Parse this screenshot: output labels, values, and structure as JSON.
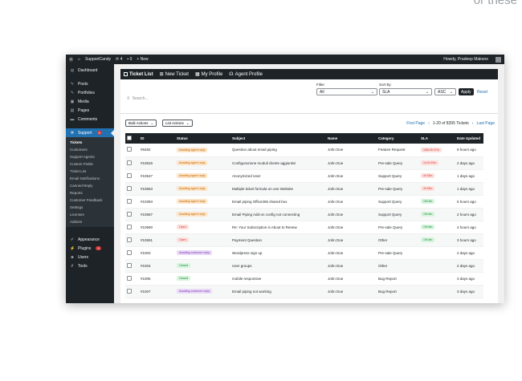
{
  "caption": "or these",
  "admin_bar": {
    "wp_logo": "wordpress-icon",
    "site": "SupportCandy",
    "updates": "4",
    "comments": "0",
    "new": "New",
    "howdy": "Howdy, Pradeep Makone"
  },
  "sidebar": {
    "top": [
      {
        "icon": "dashboard-icon",
        "label": "Dashboard"
      }
    ],
    "items": [
      {
        "icon": "pin-icon",
        "label": "Posts"
      },
      {
        "icon": "pin-icon",
        "label": "Portfolios"
      },
      {
        "icon": "media-icon",
        "label": "Media"
      },
      {
        "icon": "pages-icon",
        "label": "Pages"
      },
      {
        "icon": "comment-icon",
        "label": "Comments"
      }
    ],
    "support": {
      "label": "Support",
      "badge": "5"
    },
    "submenu": [
      "Tickets",
      "Customers",
      "Support Agents",
      "Custom Fields",
      "Ticket List",
      "Email Notifications",
      "Canned Reply",
      "Reports",
      "Customer Feedback",
      "Settings",
      "Licenses",
      "Addons"
    ],
    "bottom": [
      {
        "label": "Appearance",
        "badge": ""
      },
      {
        "label": "Plugins",
        "badge": "3"
      },
      {
        "label": "Users",
        "badge": ""
      },
      {
        "label": "Tools",
        "badge": ""
      }
    ]
  },
  "nav": {
    "tabs": [
      "Ticket List",
      "New Ticket",
      "My Profile",
      "Agent Profile"
    ]
  },
  "search": {
    "placeholder": "Search..."
  },
  "filter": {
    "label": "Filter",
    "value": "All"
  },
  "sort": {
    "label": "Sort By",
    "value": "SLA",
    "order": "ASC",
    "apply": "Apply",
    "reset": "Reset"
  },
  "actions": {
    "bulk": "Bulk Actions",
    "list": "List Actions"
  },
  "pager": {
    "first": "First Page",
    "info": "1-20 of 8395 Tickets",
    "last": "Last Page"
  },
  "table": {
    "columns": [
      "ID",
      "Status",
      "Subject",
      "Name",
      "Category",
      "SLA",
      "Date Updated"
    ],
    "rows": [
      {
        "id": "#6482",
        "status": "Awaiting agent reply",
        "status_type": "agent",
        "subject": "Question about email piping",
        "name": "John Doe",
        "category": "Feature Request",
        "sla": "183d 3h 57m",
        "sla_type": "red",
        "date": "9 hours ago"
      },
      {
        "id": "#10526",
        "status": "Awaiting agent reply",
        "status_type": "agent",
        "subject": "Configurazione moduli cliente aggiuntivi",
        "name": "John Doe",
        "category": "Pre-sale Query",
        "sla": "1d 4h 29m",
        "sla_type": "red",
        "date": "2 days ago"
      },
      {
        "id": "#10547",
        "status": "Awaiting agent reply",
        "status_type": "agent",
        "subject": "Anonymized User",
        "name": "John Doe",
        "category": "Support Query",
        "sla": "4h 53m",
        "sla_type": "red",
        "date": "1 days ago"
      },
      {
        "id": "#10553",
        "status": "Awaiting agent reply",
        "status_type": "agent",
        "subject": "Multiple ticket formula on one Website",
        "name": "John Doe",
        "category": "Pre-sale Query",
        "sla": "4h 53m",
        "sla_type": "red",
        "date": "1 days ago"
      },
      {
        "id": "#10393",
        "status": "Awaiting agent reply",
        "status_type": "agent",
        "subject": "Email piping Office365 shared box",
        "name": "John Doe",
        "category": "Support Query",
        "sla": "19h 8m",
        "sla_type": "green",
        "date": "5 hours ago"
      },
      {
        "id": "#10587",
        "status": "Awaiting agent reply",
        "status_type": "agent",
        "subject": "Email Piping Add-on config not connecting",
        "name": "John Doe",
        "category": "Support Query",
        "sla": "19h 8m",
        "sla_type": "green",
        "date": "2 hours ago"
      },
      {
        "id": "#10590",
        "status": "Open",
        "status_type": "open",
        "subject": "Re: Your Subscription is About to Renew",
        "name": "John Doe",
        "category": "Pre-sale Query",
        "sla": "19h 8m",
        "sla_type": "green",
        "date": "4 hours ago"
      },
      {
        "id": "#10591",
        "status": "Open",
        "status_type": "open",
        "subject": "Payment Question",
        "name": "John Doe",
        "category": "Other",
        "sla": "19h 8m",
        "sla_type": "green",
        "date": "3 hours ago"
      },
      {
        "id": "#1003",
        "status": "Awaiting customer reply",
        "status_type": "customer",
        "subject": "Wordpress sign up",
        "name": "John Doe",
        "category": "Pre-sale Query",
        "sla": "",
        "sla_type": "none",
        "date": "2 days ago"
      },
      {
        "id": "#1004",
        "status": "Closed",
        "status_type": "closed",
        "subject": "User groups",
        "name": "John Doe",
        "category": "Other",
        "sla": "",
        "sla_type": "none",
        "date": "2 days ago"
      },
      {
        "id": "#1006",
        "status": "Closed",
        "status_type": "closed",
        "subject": "mobile responsive",
        "name": "John Doe",
        "category": "Bug Report",
        "sla": "",
        "sla_type": "none",
        "date": "3 days ago"
      },
      {
        "id": "#1007",
        "status": "Awaiting customer reply",
        "status_type": "customer",
        "subject": "Email piping not working",
        "name": "John Doe",
        "category": "Bug Report",
        "sla": "",
        "sla_type": "none",
        "date": "3 days ago"
      }
    ]
  },
  "colors": {
    "agent_bg": "#fde4c8",
    "agent_fg": "#c26a00",
    "open_bg": "#fde0dc",
    "open_fg": "#d63638",
    "customer_bg": "#ead9f7",
    "customer_fg": "#7a3fb0",
    "closed_bg": "#d7f5dd",
    "closed_fg": "#1a8a3a",
    "sla_red_bg": "#fde0dc",
    "sla_red_fg": "#d63638",
    "sla_green_bg": "#d7f5dd",
    "sla_green_fg": "#1a8a3a"
  }
}
